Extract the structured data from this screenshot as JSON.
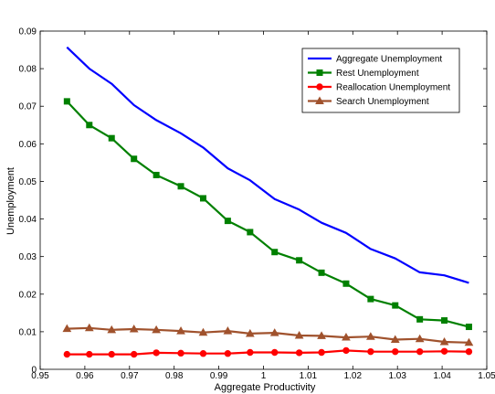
{
  "chart_data": {
    "type": "line",
    "title": "",
    "xlabel": "Aggregate Productivity",
    "ylabel": "Unemployment",
    "xlim": [
      0.95,
      1.05
    ],
    "ylim": [
      0,
      0.09
    ],
    "xticks": [
      0.95,
      0.96,
      0.97,
      0.98,
      0.99,
      1,
      1.01,
      1.02,
      1.03,
      1.04,
      1.05
    ],
    "xtick_labels": [
      "0.95",
      "0.96",
      "0.97",
      "0.98",
      "0.99",
      "1",
      "1.01",
      "1.02",
      "1.03",
      "1.04",
      "1.05"
    ],
    "yticks": [
      0,
      0.01,
      0.02,
      0.03,
      0.04,
      0.05,
      0.06,
      0.07,
      0.08,
      0.09
    ],
    "ytick_labels": [
      "0",
      "0.01",
      "0.02",
      "0.03",
      "0.04",
      "0.05",
      "0.06",
      "0.07",
      "0.08",
      "0.09"
    ],
    "grid": false,
    "legend_position": "top-right",
    "x": [
      0.956,
      0.961,
      0.966,
      0.971,
      0.976,
      0.9815,
      0.9865,
      0.992,
      0.997,
      1.0025,
      1.008,
      1.013,
      1.0185,
      1.024,
      1.0295,
      1.035,
      1.0405,
      1.046
    ],
    "series": [
      {
        "name": "Aggregate Unemployment",
        "color": "#0000ff",
        "marker": "none",
        "values": [
          0.0857,
          0.08,
          0.076,
          0.0703,
          0.0663,
          0.0628,
          0.059,
          0.0535,
          0.0503,
          0.0453,
          0.0425,
          0.039,
          0.0363,
          0.032,
          0.0295,
          0.0258,
          0.025,
          0.023
        ]
      },
      {
        "name": "Rest Unemployment",
        "color": "#008000",
        "marker": "square",
        "values": [
          0.0713,
          0.065,
          0.0615,
          0.056,
          0.0517,
          0.0487,
          0.0455,
          0.0395,
          0.0365,
          0.0312,
          0.029,
          0.0257,
          0.0228,
          0.0187,
          0.017,
          0.0133,
          0.013,
          0.0113
        ]
      },
      {
        "name": "Reallocation Unemployment",
        "color": "#ff0000",
        "marker": "circle",
        "values": [
          0.004,
          0.004,
          0.004,
          0.004,
          0.0044,
          0.0043,
          0.0042,
          0.0042,
          0.0045,
          0.0045,
          0.0044,
          0.0045,
          0.005,
          0.0047,
          0.0047,
          0.0047,
          0.0048,
          0.0047
        ]
      },
      {
        "name": "Search Unemployment",
        "color": "#a0522d",
        "marker": "triangle",
        "values": [
          0.0108,
          0.011,
          0.0105,
          0.0107,
          0.0105,
          0.0102,
          0.0098,
          0.0102,
          0.0095,
          0.0097,
          0.009,
          0.0089,
          0.0085,
          0.0087,
          0.0079,
          0.0081,
          0.0073,
          0.0071
        ]
      }
    ]
  }
}
